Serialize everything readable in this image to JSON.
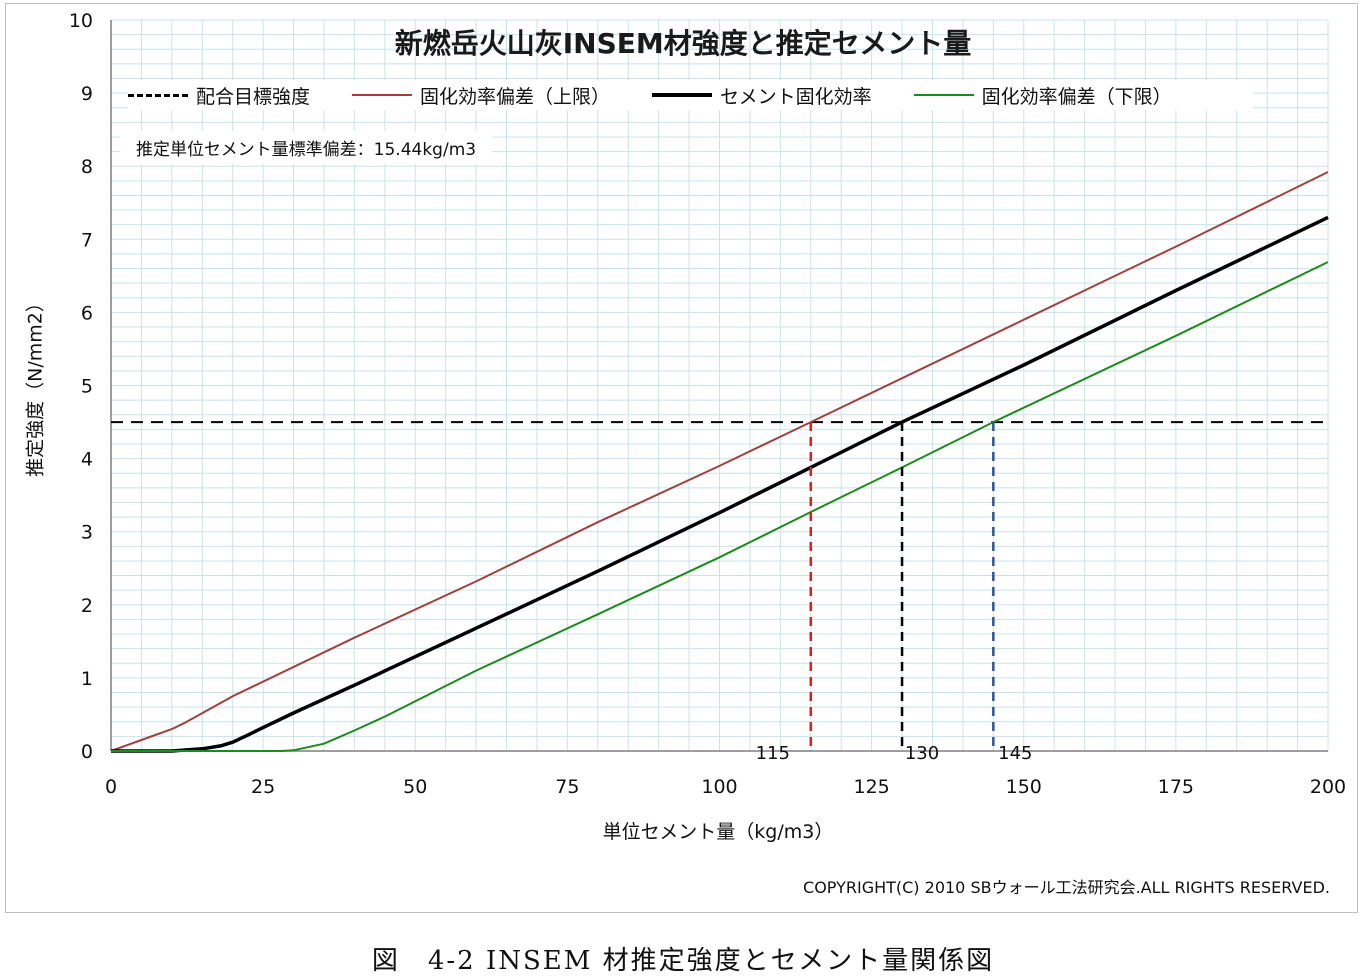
{
  "chart_data": {
    "type": "line",
    "title": "新燃岳火山灰INSEM材強度と推定セメント量",
    "xlabel": "単位セメント量（kg/m3）",
    "ylabel": "推定強度（N/mm2）",
    "xlim": [
      0,
      200
    ],
    "ylim": [
      0,
      10
    ],
    "x_ticks": [
      "0",
      "25",
      "50",
      "75",
      "100",
      "125",
      "150",
      "175",
      "200"
    ],
    "y_ticks": [
      "0",
      "1",
      "2",
      "3",
      "4",
      "5",
      "6",
      "7",
      "8",
      "9",
      "10"
    ],
    "grid": "on (minor)",
    "legend_position": "top",
    "series": [
      {
        "name": "配合目標強度",
        "style": "dashed",
        "color": "#000000",
        "points": [
          [
            0,
            4.5
          ],
          [
            200,
            4.5
          ]
        ]
      },
      {
        "name": "固化効率偏差（上限）",
        "style": "solid",
        "color": "#a0413e",
        "points": [
          [
            0,
            0.0
          ],
          [
            5,
            0.15
          ],
          [
            10,
            0.3
          ],
          [
            12,
            0.38
          ],
          [
            20,
            0.75
          ],
          [
            40,
            1.55
          ],
          [
            60,
            2.32
          ],
          [
            80,
            3.13
          ],
          [
            100,
            3.9
          ],
          [
            115,
            4.5
          ],
          [
            130,
            5.1
          ],
          [
            150,
            5.9
          ],
          [
            175,
            6.9
          ],
          [
            200,
            7.92
          ]
        ]
      },
      {
        "name": "セメント固化効率",
        "style": "solid",
        "color": "#000000",
        "points": [
          [
            0,
            0.0
          ],
          [
            10,
            0.0
          ],
          [
            15,
            0.03
          ],
          [
            18,
            0.07
          ],
          [
            20,
            0.12
          ],
          [
            22,
            0.2
          ],
          [
            25,
            0.32
          ],
          [
            30,
            0.52
          ],
          [
            40,
            0.9
          ],
          [
            60,
            1.68
          ],
          [
            80,
            2.46
          ],
          [
            100,
            3.26
          ],
          [
            115,
            3.88
          ],
          [
            130,
            4.5
          ],
          [
            150,
            5.28
          ],
          [
            175,
            6.3
          ],
          [
            200,
            7.3
          ]
        ]
      },
      {
        "name": "固化効率偏差（下限）",
        "style": "solid",
        "color": "#1e8a1e",
        "points": [
          [
            0,
            0.0
          ],
          [
            28,
            0.0
          ],
          [
            30,
            0.01
          ],
          [
            35,
            0.1
          ],
          [
            40,
            0.28
          ],
          [
            45,
            0.47
          ],
          [
            60,
            1.1
          ],
          [
            80,
            1.87
          ],
          [
            100,
            2.65
          ],
          [
            115,
            3.27
          ],
          [
            130,
            3.88
          ],
          [
            145,
            4.5
          ],
          [
            175,
            5.68
          ],
          [
            200,
            6.69
          ]
        ]
      }
    ],
    "reference_lines": [
      {
        "x": 115,
        "y": 4.5,
        "label": "115",
        "color": "#e31a1c"
      },
      {
        "x": 130,
        "y": 4.5,
        "label": "130",
        "color": "#000000"
      },
      {
        "x": 145,
        "y": 4.5,
        "label": "145",
        "color": "#2f5597"
      }
    ]
  },
  "annotation": {
    "stddev_text": "推定単位セメント量標準偏差：15.44kg/m3"
  },
  "copyright": "COPYRIGHT(C) 2010 SBウォール工法研究会.ALL RIGHTS RESERVED.",
  "caption": "図　4-2 INSEM 材推定強度とセメント量関係図",
  "colors": {
    "grid": "#c9e3ec",
    "axis": "#7f7f7f",
    "upper": "#a0413e",
    "lower": "#1e8a1e",
    "main": "#000000"
  }
}
